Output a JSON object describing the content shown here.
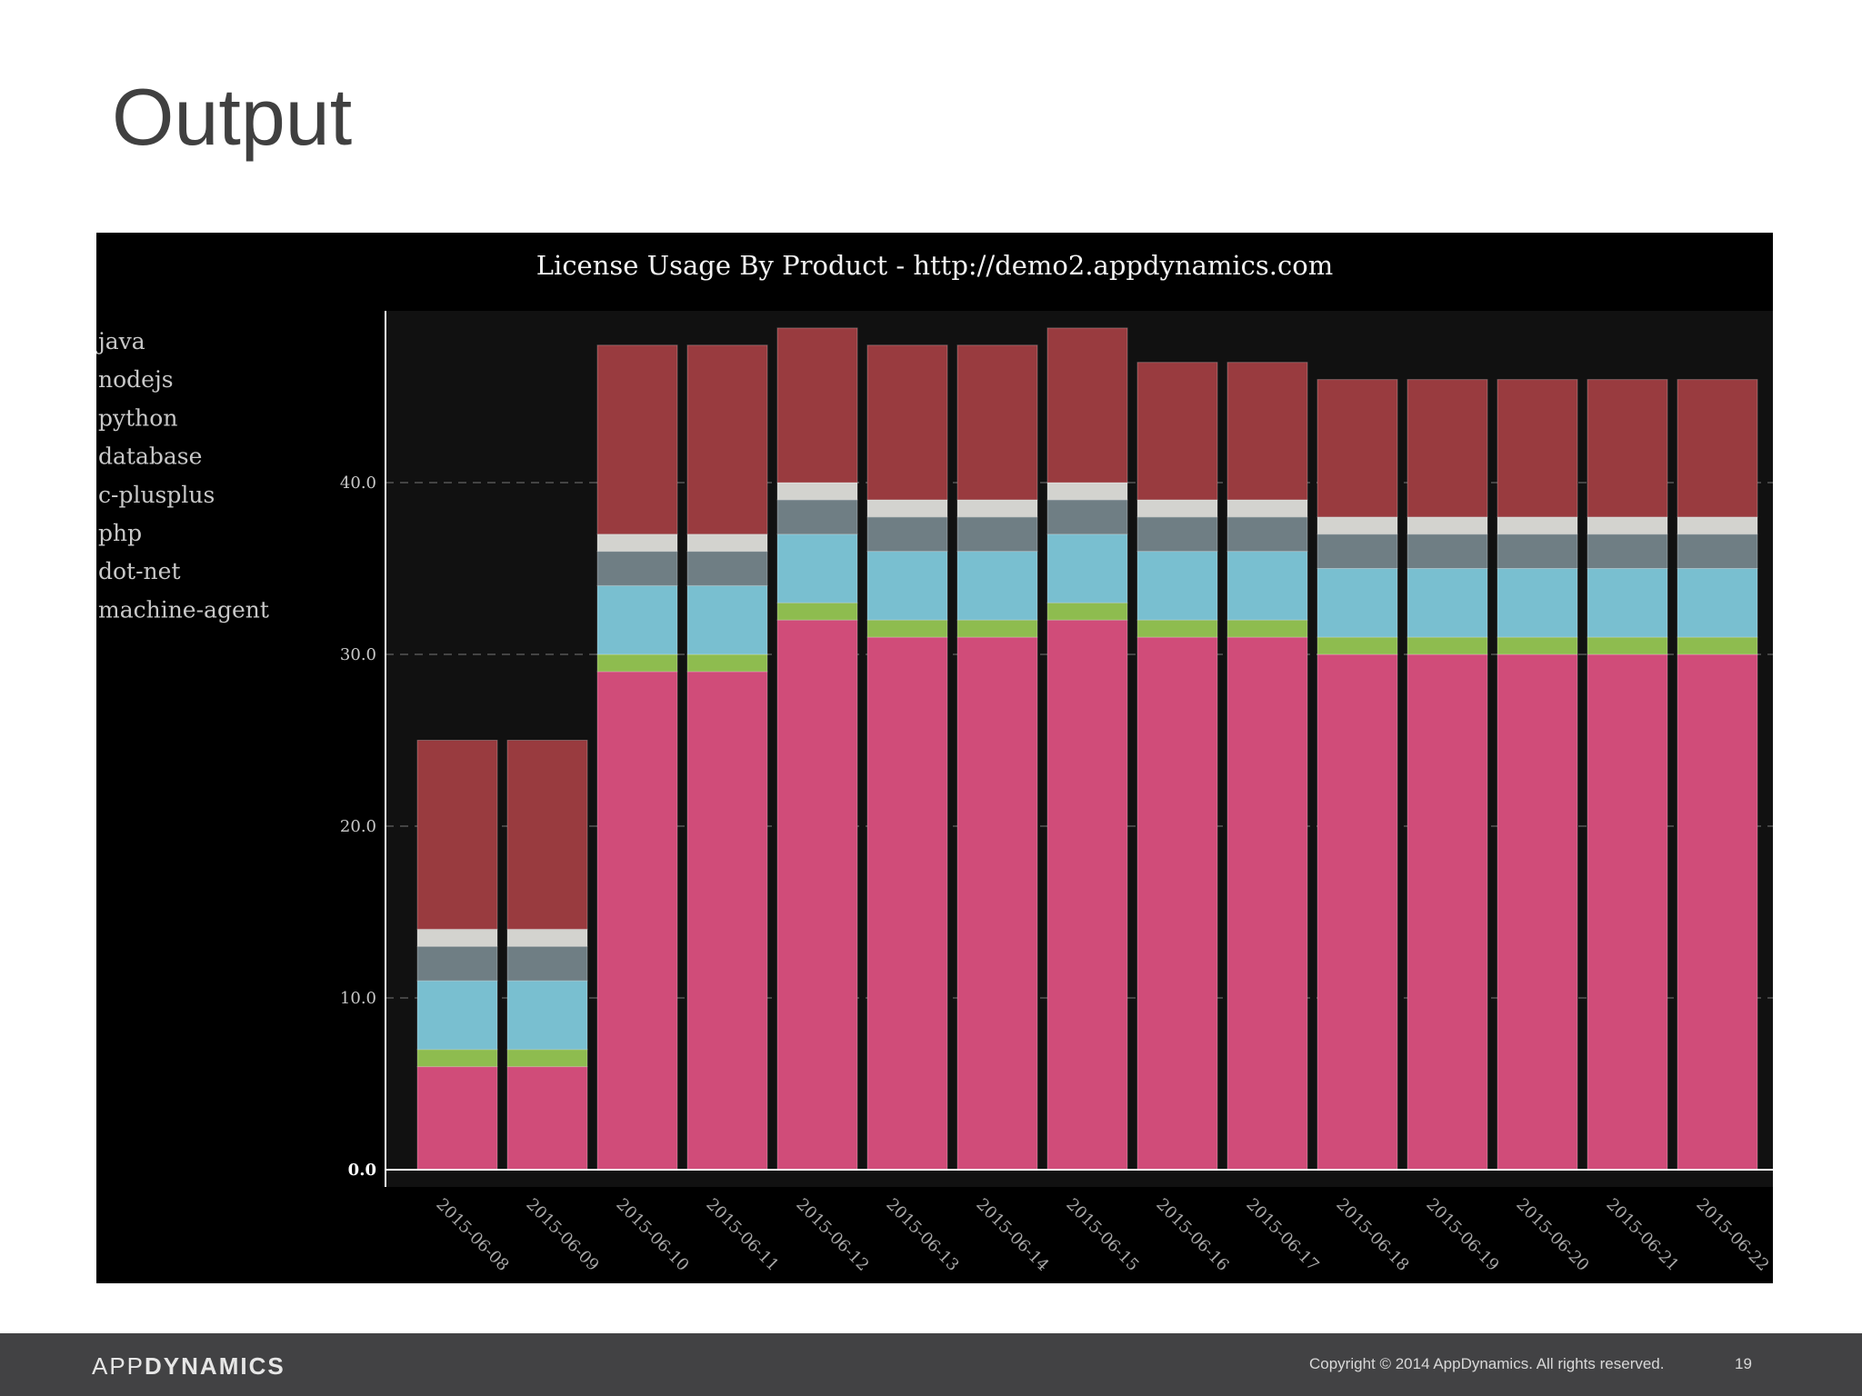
{
  "slide": {
    "title": "Output",
    "page_number": "19",
    "copyright": "Copyright © 2014 AppDynamics. All rights reserved.",
    "brand_light": "APP",
    "brand_bold": "DYNAMICS"
  },
  "chart_data": {
    "type": "bar",
    "stacked": true,
    "title": "License Usage By Product - http://demo2.appdynamics.com",
    "xlabel": "",
    "ylabel": "",
    "ylim": [
      0,
      50
    ],
    "yticks": [
      "0.0",
      "10.0",
      "20.0",
      "30.0",
      "40.0"
    ],
    "grid": true,
    "legend_position": "top-left",
    "background": "#000000",
    "plot_background": "#111111",
    "categories": [
      "2015-06-08",
      "2015-06-09",
      "2015-06-10",
      "2015-06-11",
      "2015-06-12",
      "2015-06-13",
      "2015-06-14",
      "2015-06-15",
      "2015-06-16",
      "2015-06-17",
      "2015-06-18",
      "2015-06-19",
      "2015-06-20",
      "2015-06-21",
      "2015-06-22"
    ],
    "legend": [
      "java",
      "nodejs",
      "python",
      "database",
      "c-plusplus",
      "php",
      "dot-net",
      "machine-agent"
    ],
    "series": [
      {
        "name": "java",
        "color": "#d04c79",
        "values": [
          6,
          6,
          29,
          29,
          32,
          31,
          31,
          32,
          31,
          31,
          30,
          30,
          30,
          30,
          30
        ]
      },
      {
        "name": "nodejs",
        "color": "#8ebc4f",
        "values": [
          1,
          1,
          1,
          1,
          1,
          1,
          1,
          1,
          1,
          1,
          1,
          1,
          1,
          1,
          1
        ]
      },
      {
        "name": "python",
        "color": "#79bfd0",
        "values": [
          4,
          4,
          4,
          4,
          4,
          4,
          4,
          4,
          4,
          4,
          4,
          4,
          4,
          4,
          4
        ]
      },
      {
        "name": "database",
        "color": "#6f7e84",
        "values": [
          2,
          2,
          2,
          2,
          2,
          2,
          2,
          2,
          2,
          2,
          2,
          2,
          2,
          2,
          2
        ]
      },
      {
        "name": "c-plusplus",
        "color": "#d3d3cf",
        "values": [
          1,
          1,
          1,
          1,
          1,
          1,
          1,
          1,
          1,
          1,
          1,
          1,
          1,
          1,
          1
        ]
      },
      {
        "name": "php",
        "values": [
          0,
          0,
          0,
          0,
          0,
          0,
          0,
          0,
          0,
          0,
          0,
          0,
          0,
          0,
          0
        ]
      },
      {
        "name": "dot-net",
        "values": [
          0,
          0,
          0,
          0,
          0,
          0,
          0,
          0,
          0,
          0,
          0,
          0,
          0,
          0,
          0
        ]
      },
      {
        "name": "machine-agent",
        "color": "#993b3f",
        "values": [
          11,
          11,
          11,
          11,
          9,
          9,
          9,
          9,
          8,
          8,
          8,
          8,
          8,
          8,
          8
        ]
      }
    ]
  }
}
